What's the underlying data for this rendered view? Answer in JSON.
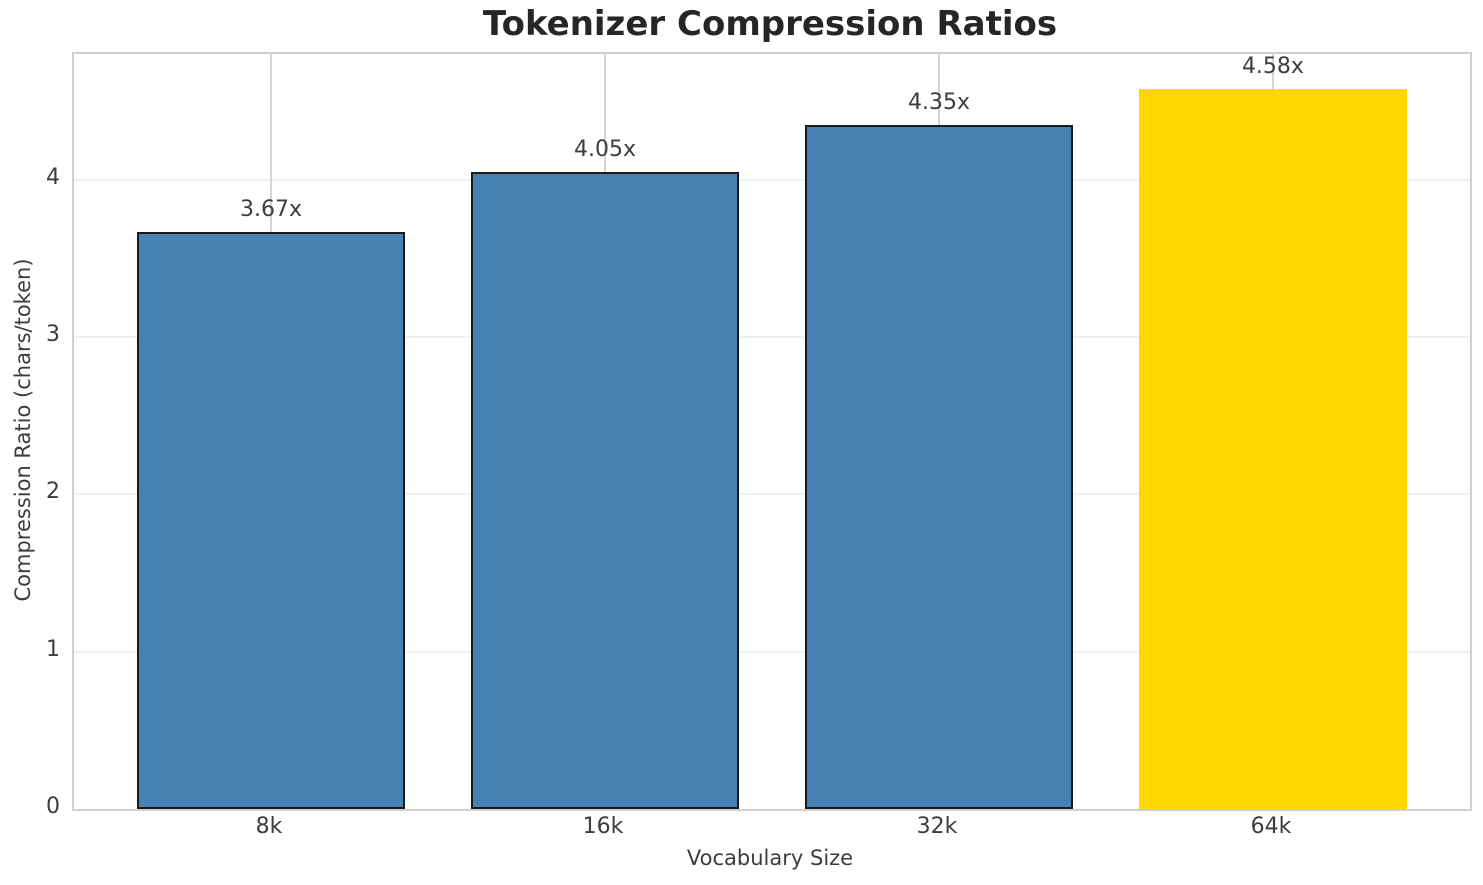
{
  "chart_data": {
    "type": "bar",
    "title": "Tokenizer Compression Ratios",
    "xlabel": "Vocabulary Size",
    "ylabel": "Compression Ratio (chars/token)",
    "categories": [
      "8k",
      "16k",
      "32k",
      "64k"
    ],
    "values": [
      3.67,
      4.05,
      4.35,
      4.58
    ],
    "bar_labels": [
      "3.67x",
      "4.05x",
      "4.35x",
      "4.58x"
    ],
    "ytick_labels": [
      "0",
      "1",
      "2",
      "3",
      "4"
    ],
    "ytick_values": [
      0,
      1,
      2,
      3,
      4
    ],
    "ylim": [
      0,
      4.8
    ],
    "grid": true,
    "legend_position": "none",
    "bar_colors": [
      "#4682B4",
      "#4682B4",
      "#4682B4",
      "#FFD700"
    ],
    "bar_edge_colors": [
      "#1a1a1a",
      "#1a1a1a",
      "#1a1a1a",
      "none"
    ],
    "highlight_index": 3,
    "colors": {
      "bar_default": "#4682B4",
      "bar_highlight": "#FFD700",
      "bar_edge": "#1a1a1a",
      "grid_horizontal": "#f0f0f0",
      "grid_vertical": "#d5d5d5",
      "spine": "#d0d0d0",
      "text": "#3d3d3d",
      "title_text": "#262626",
      "background": "#ffffff"
    }
  }
}
